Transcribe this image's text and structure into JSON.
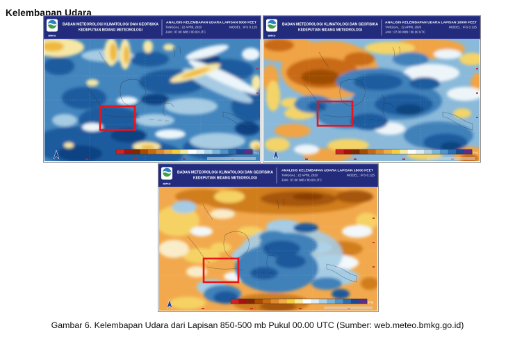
{
  "page": {
    "title": "Kelembapan Udara",
    "caption": "Gambar 6. Kelembapan Udara dari Lapisan 850-500 mb Pukul 00.00 UTC (Sumber: web.meteo.bmkg.go.id)"
  },
  "maps": [
    {
      "logo_text": "BMKG",
      "agency_line1": "BADAN METEOROLOGI KLIMATOLOGI DAN GEOFISIKA",
      "agency_line2": "KEDEPUTIAN BIDANG METEOROLOGI",
      "analysis_title": "ANALISIS KELEMBAPAN UDARA LAPISAN 5000 FEET",
      "tanggal": "TANGGAL : 22 APRIL 2020",
      "model": "MODEL : IFS 0.125",
      "jam": "JAM : 07.00 WIB / 00.00 UTC",
      "unit_label": "(%)"
    },
    {
      "logo_text": "BMKG",
      "agency_line1": "BADAN METEOROLOGI KLIMATOLOGI DAN GEOFISIKA",
      "agency_line2": "KEDEPUTIAN BIDANG METEOROLOGI",
      "analysis_title": "ANALISIS KELEMBAPAN UDARA LAPISAN 10000 FEET",
      "tanggal": "TANGGAL : 22 APRIL 2020",
      "model": "MODEL : IFS 0.125",
      "jam": "JAM : 07.00 WIB / 00.00 UTC",
      "unit_label": "(%)"
    },
    {
      "logo_text": "BMKG",
      "agency_line1": "BADAN METEOROLOGI KLIMATOLOGI DAN GEOFISIKA",
      "agency_line2": "KEDEPUTIAN BIDANG METEOROLOGI",
      "analysis_title": "ANALISIS KELEMBAPAN UDARA LAPISAN 18000 FEET",
      "tanggal": "TANGGAL : 22 APRIL 2020",
      "model": "MODEL : IFS 0.125",
      "jam": "JAM : 07.00 WIB / 00.00 UTC",
      "unit_label": "(%)"
    }
  ],
  "colors": {
    "header_navy": "#232b7c",
    "annotation_red": "#e8131b",
    "colorbar": [
      "#cf2222",
      "#a31313",
      "#7e2a00",
      "#a84a00",
      "#c56a10",
      "#dd8a2e",
      "#eead49",
      "#f2cf3e",
      "#f6e9a2",
      "#ffffff",
      "#dcedf6",
      "#abd2e8",
      "#7cb5db",
      "#5093c8",
      "#2c6db0",
      "#1d4694",
      "#5c2e87"
    ]
  }
}
